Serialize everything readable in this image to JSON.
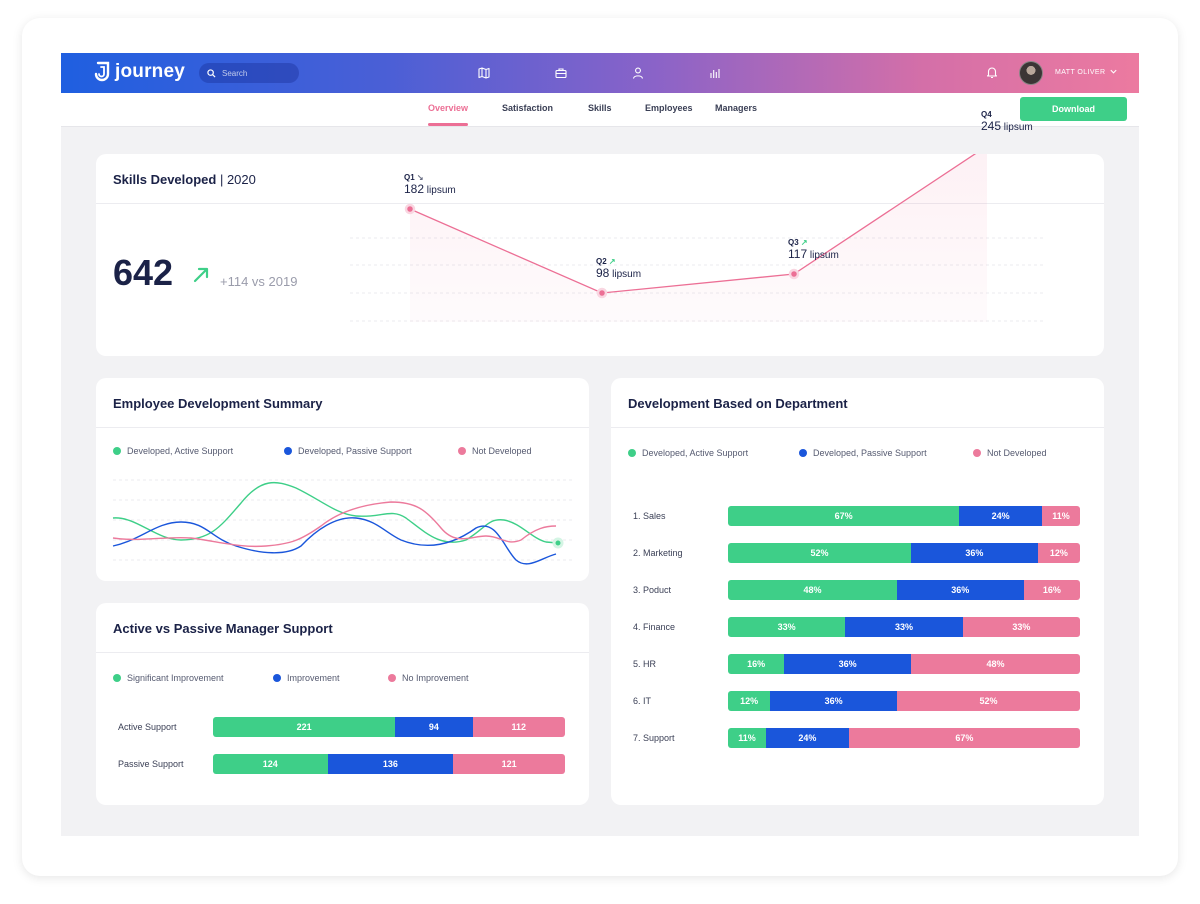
{
  "app": {
    "logo_text": "journey"
  },
  "header": {
    "search_placeholder": "Search",
    "nav_icons": [
      "map-icon",
      "briefcase-icon",
      "user-icon",
      "bar-chart-icon"
    ],
    "user_name": "MATT OLIVER"
  },
  "tabs": [
    {
      "label": "Overview",
      "active": true
    },
    {
      "label": "Satisfaction",
      "active": false
    },
    {
      "label": "Skills",
      "active": false
    },
    {
      "label": "Employees",
      "active": false
    },
    {
      "label": "Managers",
      "active": false
    }
  ],
  "download_label": "Download",
  "skills": {
    "title": "Skills Developed",
    "year": "2020",
    "total": "642",
    "delta": "+114 vs 2019",
    "chart_data": {
      "type": "area",
      "categories": [
        "Q1",
        "Q2",
        "Q3",
        "Q4"
      ],
      "values": [
        182,
        98,
        117,
        245
      ],
      "unit": "lipsum",
      "trends": [
        "↘",
        "↗",
        "↗",
        ""
      ],
      "color": "#ec6f95"
    }
  },
  "emp_dev": {
    "title": "Employee Development Summary",
    "legend": [
      {
        "label": "Developed, Active Support",
        "color": "#3ecf88"
      },
      {
        "label": "Developed, Passive Support",
        "color": "#1a56db"
      },
      {
        "label": "Not Developed",
        "color": "#ec7a9c"
      }
    ]
  },
  "manager": {
    "title": "Active vs Passive Manager Support",
    "legend": [
      {
        "label": "Significant Improvement",
        "color": "#3ecf88"
      },
      {
        "label": "Improvement",
        "color": "#1a56db"
      },
      {
        "label": "No Improvement",
        "color": "#ec7a9c"
      }
    ],
    "chart_data": {
      "type": "bar",
      "stacked": true,
      "categories": [
        "Active Support",
        "Passive Support"
      ],
      "series": [
        {
          "name": "Significant Improvement",
          "values": [
            221,
            124
          ]
        },
        {
          "name": "Improvement",
          "values": [
            94,
            136
          ]
        },
        {
          "name": "No Improvement",
          "values": [
            112,
            121
          ]
        }
      ]
    }
  },
  "department": {
    "title": "Development Based on Department",
    "legend": [
      {
        "label": "Developed, Active Support",
        "color": "#3ecf88"
      },
      {
        "label": "Developed, Passive Support",
        "color": "#1a56db"
      },
      {
        "label": "Not Developed",
        "color": "#ec7a9c"
      }
    ],
    "chart_data": {
      "type": "bar",
      "stacked": true,
      "categories": [
        "1. Sales",
        "2. Marketing",
        "3.  Poduct",
        "4. Finance",
        "5. HR",
        "6. IT",
        "7. Support"
      ],
      "series": [
        {
          "name": "Developed, Active Support",
          "values": [
            67,
            52,
            48,
            33,
            16,
            12,
            11
          ]
        },
        {
          "name": "Developed, Passive Support",
          "values": [
            24,
            36,
            36,
            33,
            36,
            36,
            24
          ]
        },
        {
          "name": "Not Developed",
          "values": [
            11,
            12,
            16,
            33,
            48,
            52,
            67
          ]
        }
      ],
      "unit": "%"
    }
  }
}
